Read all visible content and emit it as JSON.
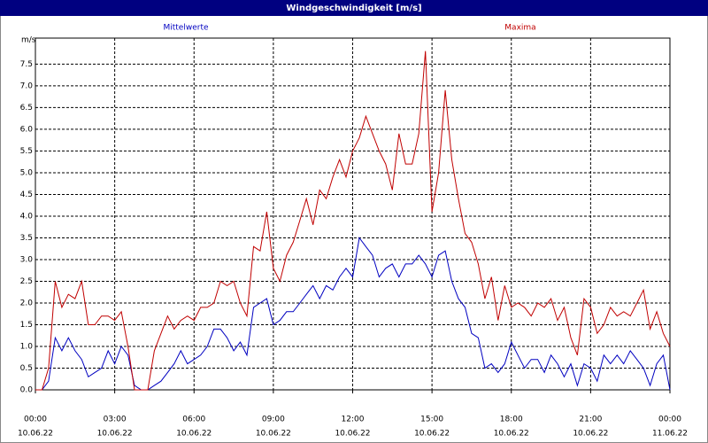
{
  "chart_data": {
    "type": "line",
    "title": "Windgeschwindigkeit [m/s]",
    "y_unit": "m/s",
    "xlim": [
      0,
      24
    ],
    "ylim": [
      0,
      8.1
    ],
    "xticks": [
      {
        "value": 0,
        "label": "00:00"
      },
      {
        "value": 3,
        "label": "03:00"
      },
      {
        "value": 6,
        "label": "06:00"
      },
      {
        "value": 9,
        "label": "09:00"
      },
      {
        "value": 12,
        "label": "12:00"
      },
      {
        "value": 15,
        "label": "15:00"
      },
      {
        "value": 18,
        "label": "18:00"
      },
      {
        "value": 21,
        "label": "21:00"
      },
      {
        "value": 24,
        "label": "00:00"
      }
    ],
    "xtick_dates": [
      "10.06.22",
      "10.06.22",
      "10.06.22",
      "10.06.22",
      "10.06.22",
      "10.06.22",
      "10.06.22",
      "10.06.22",
      "11.06.22"
    ],
    "yticks": [
      {
        "value": 0,
        "label": "0.0"
      },
      0.5,
      {
        "value": 1,
        "label": "1.0"
      },
      1.5,
      {
        "value": 2,
        "label": "2.0"
      },
      2.5,
      {
        "value": 3,
        "label": "3.0"
      },
      3.5,
      {
        "value": 4,
        "label": "4.0"
      },
      4.5,
      {
        "value": 5,
        "label": "5.0"
      },
      5.5,
      {
        "value": 6,
        "label": "6.0"
      },
      6.5,
      {
        "value": 7,
        "label": "7.0"
      },
      7.5
    ],
    "grid": true,
    "x": [
      0,
      0.25,
      0.5,
      0.75,
      1,
      1.25,
      1.5,
      1.75,
      2,
      2.25,
      2.5,
      2.75,
      3,
      3.25,
      3.5,
      3.75,
      4,
      4.25,
      4.5,
      4.75,
      5,
      5.25,
      5.5,
      5.75,
      6,
      6.25,
      6.5,
      6.75,
      7,
      7.25,
      7.5,
      7.75,
      8,
      8.25,
      8.5,
      8.75,
      9,
      9.25,
      9.5,
      9.75,
      10,
      10.25,
      10.5,
      10.75,
      11,
      11.25,
      11.5,
      11.75,
      12,
      12.25,
      12.5,
      12.75,
      13,
      13.25,
      13.5,
      13.75,
      14,
      14.25,
      14.5,
      14.75,
      15,
      15.25,
      15.5,
      15.75,
      16,
      16.25,
      16.5,
      16.75,
      17,
      17.25,
      17.5,
      17.75,
      18,
      18.25,
      18.5,
      18.75,
      19,
      19.25,
      19.5,
      19.75,
      20,
      20.25,
      20.5,
      20.75,
      21,
      21.25,
      21.5,
      21.75,
      22,
      22.25,
      22.5,
      22.75,
      23,
      23.25,
      23.5,
      23.75,
      24
    ],
    "series": [
      {
        "name": "Mittelwerte",
        "color": "#0000c0",
        "values": [
          0,
          0,
          0.2,
          1.2,
          0.9,
          1.2,
          0.9,
          0.7,
          0.3,
          0.4,
          0.5,
          0.9,
          0.6,
          1.0,
          0.8,
          0.1,
          0,
          0,
          0.1,
          0.2,
          0.4,
          0.6,
          0.9,
          0.6,
          0.7,
          0.8,
          1.0,
          1.4,
          1.4,
          1.2,
          0.9,
          1.1,
          0.8,
          1.9,
          2.0,
          2.1,
          1.5,
          1.6,
          1.8,
          1.8,
          2.0,
          2.2,
          2.4,
          2.1,
          2.4,
          2.3,
          2.6,
          2.8,
          2.6,
          3.5,
          3.3,
          3.1,
          2.6,
          2.8,
          2.9,
          2.6,
          2.9,
          2.9,
          3.1,
          2.9,
          2.6,
          3.1,
          3.2,
          2.5,
          2.1,
          1.9,
          1.3,
          1.2,
          0.5,
          0.6,
          0.4,
          0.6,
          1.1,
          0.8,
          0.5,
          0.7,
          0.7,
          0.4,
          0.8,
          0.6,
          0.3,
          0.6,
          0.1,
          0.6,
          0.5,
          0.2,
          0.8,
          0.6,
          0.8,
          0.6,
          0.9,
          0.7,
          0.5,
          0.1,
          0.6,
          0.8,
          0
        ]
      },
      {
        "name": "Maxima",
        "color": "#c00000",
        "values": [
          0,
          0,
          0.5,
          2.5,
          1.9,
          2.2,
          2.1,
          2.5,
          1.5,
          1.5,
          1.7,
          1.7,
          1.6,
          1.8,
          1.0,
          0,
          0,
          0,
          0.9,
          1.3,
          1.7,
          1.4,
          1.6,
          1.7,
          1.6,
          1.9,
          1.9,
          2.0,
          2.5,
          2.4,
          2.5,
          2.0,
          1.7,
          3.3,
          3.2,
          4.1,
          2.8,
          2.5,
          3.1,
          3.4,
          3.9,
          4.4,
          3.8,
          4.6,
          4.4,
          4.9,
          5.3,
          4.9,
          5.5,
          5.8,
          6.3,
          5.9,
          5.5,
          5.2,
          4.6,
          5.9,
          5.2,
          5.2,
          5.9,
          7.8,
          4.1,
          5.0,
          6.9,
          5.3,
          4.4,
          3.6,
          3.4,
          2.9,
          2.1,
          2.6,
          1.6,
          2.4,
          1.9,
          2.0,
          1.9,
          1.7,
          2.0,
          1.9,
          2.1,
          1.6,
          1.9,
          1.2,
          0.8,
          2.1,
          1.9,
          1.3,
          1.5,
          1.9,
          1.7,
          1.8,
          1.7,
          2.0,
          2.3,
          1.4,
          1.8,
          1.3,
          1.0
        ]
      }
    ]
  }
}
